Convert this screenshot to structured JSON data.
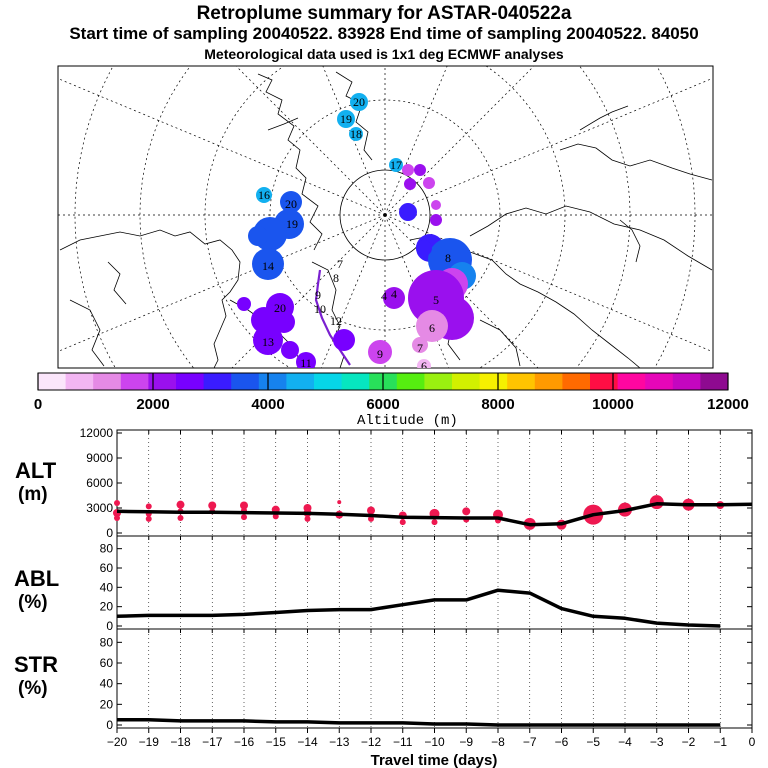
{
  "header": {
    "title": "Retroplume summary for ASTAR-040522a",
    "sampling_line": "Start time of sampling 20040522. 83928     End time of sampling 20040522. 84050",
    "meteo_line": "Meteorological data used is 1x1 deg ECMWF analyses"
  },
  "map": {
    "day_labels": [
      "20",
      "19",
      "18",
      "17",
      "16",
      "15",
      "14",
      "13",
      "12",
      "11",
      "10",
      "9",
      "8",
      "7",
      "6",
      "5",
      "4",
      "3",
      "2",
      "1"
    ]
  },
  "colorbar": {
    "ticks": [
      0,
      2000,
      4000,
      6000,
      8000,
      10000,
      12000
    ],
    "label": "Altitude (m)",
    "colors": [
      "#fbe6fb",
      "#f3b6f3",
      "#e58ae5",
      "#cc44ee",
      "#9a10ee",
      "#7800ff",
      "#3a1cff",
      "#1a55ee",
      "#1682ee",
      "#12b0f0",
      "#06d6e8",
      "#06e6c0",
      "#28e05a",
      "#56ee10",
      "#9af010",
      "#d2f000",
      "#f6f000",
      "#ffc400",
      "#ff9a00",
      "#ff6a00",
      "#ff0e44",
      "#ff06a0",
      "#e606b8",
      "#c406c0",
      "#8e0a90"
    ]
  },
  "chart_data": [
    {
      "type": "line",
      "panel": "ALT",
      "ylabel": "ALT (m)",
      "ylim": [
        0,
        12000
      ],
      "yticks": [
        0,
        3000,
        6000,
        9000,
        12000
      ],
      "x": [
        -20,
        -19,
        -18,
        -17,
        -16,
        -15,
        -14,
        -13,
        -12,
        -11,
        -10,
        -9,
        -8,
        -7,
        -6,
        -5,
        -4,
        -3,
        -2,
        -1,
        0
      ],
      "y": [
        2600,
        2550,
        2500,
        2480,
        2450,
        2400,
        2350,
        2250,
        2100,
        1900,
        1850,
        1800,
        1800,
        1000,
        1100,
        2200,
        2700,
        3500,
        3400,
        3400,
        3450
      ],
      "scatter": [
        {
          "x": -20,
          "y": 3600,
          "s": 3
        },
        {
          "x": -20,
          "y": 2400,
          "s": 4
        },
        {
          "x": -20,
          "y": 1800,
          "s": 3
        },
        {
          "x": -19,
          "y": 3200,
          "s": 3
        },
        {
          "x": -19,
          "y": 2300,
          "s": 3
        },
        {
          "x": -19,
          "y": 1700,
          "s": 3
        },
        {
          "x": -18,
          "y": 3400,
          "s": 4
        },
        {
          "x": -18,
          "y": 2600,
          "s": 3
        },
        {
          "x": -18,
          "y": 1800,
          "s": 3
        },
        {
          "x": -17,
          "y": 3300,
          "s": 4
        },
        {
          "x": -17,
          "y": 2600,
          "s": 3
        },
        {
          "x": -16,
          "y": 3300,
          "s": 4
        },
        {
          "x": -16,
          "y": 2700,
          "s": 3
        },
        {
          "x": -16,
          "y": 1900,
          "s": 3
        },
        {
          "x": -15,
          "y": 2800,
          "s": 4
        },
        {
          "x": -15,
          "y": 2000,
          "s": 3
        },
        {
          "x": -14,
          "y": 3000,
          "s": 4
        },
        {
          "x": -14,
          "y": 2400,
          "s": 4
        },
        {
          "x": -14,
          "y": 1700,
          "s": 3
        },
        {
          "x": -13,
          "y": 3700,
          "s": 2
        },
        {
          "x": -13,
          "y": 2200,
          "s": 4
        },
        {
          "x": -12,
          "y": 2700,
          "s": 4
        },
        {
          "x": -12,
          "y": 1700,
          "s": 3
        },
        {
          "x": -11,
          "y": 2100,
          "s": 4
        },
        {
          "x": -11,
          "y": 1300,
          "s": 3
        },
        {
          "x": -10,
          "y": 2300,
          "s": 5
        },
        {
          "x": -10,
          "y": 1300,
          "s": 3
        },
        {
          "x": -9,
          "y": 2600,
          "s": 4
        },
        {
          "x": -9,
          "y": 1600,
          "s": 3
        },
        {
          "x": -8,
          "y": 2200,
          "s": 5
        },
        {
          "x": -8,
          "y": 1500,
          "s": 3
        },
        {
          "x": -7,
          "y": 1100,
          "s": 6
        },
        {
          "x": -6,
          "y": 1000,
          "s": 5
        },
        {
          "x": -5,
          "y": 2200,
          "s": 10
        },
        {
          "x": -4,
          "y": 2800,
          "s": 7
        },
        {
          "x": -3,
          "y": 3700,
          "s": 7
        },
        {
          "x": -2,
          "y": 3400,
          "s": 6
        },
        {
          "x": -1,
          "y": 3350,
          "s": 4
        }
      ],
      "marker_color": "#ee1850"
    },
    {
      "type": "line",
      "panel": "ABL",
      "ylabel": "ABL (%)",
      "ylim": [
        0,
        90
      ],
      "yticks": [
        0,
        20,
        40,
        60,
        80
      ],
      "x": [
        -20,
        -19,
        -18,
        -17,
        -16,
        -15,
        -14,
        -13,
        -12,
        -11,
        -10,
        -9,
        -8,
        -7,
        -6,
        -5,
        -4,
        -3,
        -2,
        -1
      ],
      "y": [
        10,
        11,
        11,
        11,
        12,
        14,
        16,
        17,
        17,
        22,
        27,
        27,
        37,
        34,
        18,
        10,
        8,
        3,
        1,
        0
      ]
    },
    {
      "type": "line",
      "panel": "STR",
      "ylabel": "STR (%)",
      "ylim": [
        0,
        90
      ],
      "yticks": [
        0,
        20,
        40,
        60,
        80
      ],
      "x": [
        -20,
        -19,
        -18,
        -17,
        -16,
        -15,
        -14,
        -13,
        -12,
        -11,
        -10,
        -9,
        -8,
        -7,
        -6,
        -5,
        -4,
        -3,
        -2,
        -1
      ],
      "y": [
        5,
        5,
        4,
        4,
        4,
        3,
        3,
        2,
        2,
        2,
        1,
        1,
        0,
        0,
        0,
        0,
        0,
        0,
        0,
        0
      ]
    }
  ],
  "x_axis": {
    "ticks": [
      -20,
      -19,
      -18,
      -17,
      -16,
      -15,
      -14,
      -13,
      -12,
      -11,
      -10,
      -9,
      -8,
      -7,
      -6,
      -5,
      -4,
      -3,
      -2,
      -1,
      0
    ],
    "label": "Travel time (days)"
  },
  "panel_labels": {
    "alt": {
      "line1": "ALT",
      "line2": "(m)"
    },
    "abl": {
      "line1": "ABL",
      "line2": "(%)"
    },
    "str": {
      "line1": "STR",
      "line2": "(%)"
    }
  }
}
